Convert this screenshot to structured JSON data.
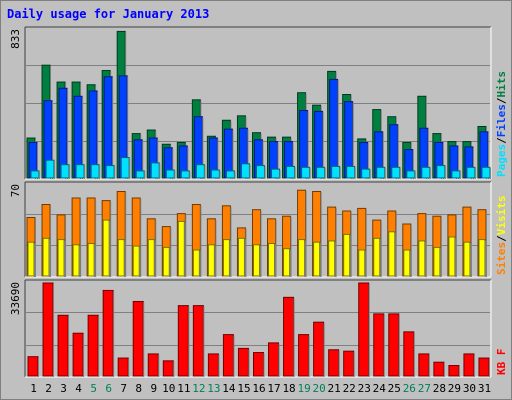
{
  "chart_data": {
    "type": "bar",
    "title": "Daily usage for January 2013",
    "categories": [
      "1",
      "2",
      "3",
      "4",
      "5",
      "6",
      "7",
      "8",
      "9",
      "10",
      "11",
      "12",
      "13",
      "14",
      "15",
      "16",
      "17",
      "18",
      "19",
      "20",
      "21",
      "22",
      "23",
      "24",
      "25",
      "26",
      "27",
      "28",
      "29",
      "30",
      "31"
    ],
    "weekend_days": [
      "5",
      "6",
      "12",
      "13",
      "19",
      "20",
      "26",
      "27"
    ],
    "colors": {
      "hits": "#008040",
      "files": "#0040ff",
      "pages": "#00e0ff",
      "visits": "#ffff00",
      "sites": "#ff8000",
      "kbytes": "#ff0000",
      "weekday_label": "#000000",
      "weekend_label": "#00805c",
      "plot_bg": "#c0c0c0",
      "gridline": "#808080"
    },
    "panels": [
      {
        "id": "hits-files-pages",
        "ymax_label": "833",
        "ymax": 833,
        "series": [
          {
            "name": "Hits",
            "key": "hits",
            "values": [
              225,
              635,
              540,
              540,
              525,
              605,
              825,
              250,
              270,
              190,
              200,
              440,
              235,
              325,
              350,
              255,
              230,
              230,
              480,
              410,
              600,
              470,
              220,
              385,
              345,
              200,
              460,
              250,
              205,
              205,
              290
            ]
          },
          {
            "name": "Files",
            "key": "files",
            "values": [
              200,
              435,
              505,
              460,
              490,
              570,
              575,
              215,
              225,
              170,
              180,
              345,
              225,
              275,
              280,
              215,
              205,
              205,
              380,
              375,
              555,
              430,
              200,
              260,
              300,
              160,
              280,
              200,
              180,
              175,
              260
            ]
          },
          {
            "name": "Pages",
            "key": "pages",
            "values": [
              40,
              100,
              75,
              75,
              75,
              70,
              115,
              40,
              85,
              45,
              40,
              75,
              45,
              40,
              80,
              70,
              50,
              65,
              60,
              60,
              65,
              65,
              50,
              60,
              60,
              40,
              60,
              70,
              40,
              60,
              60
            ]
          }
        ],
        "labels": [
          {
            "text": "Pages",
            "key": "pages"
          },
          {
            "text": "/",
            "key": "sep"
          },
          {
            "text": "Files",
            "key": "files"
          },
          {
            "text": "/",
            "key": "sep"
          },
          {
            "text": "Hits",
            "key": "hits"
          }
        ]
      },
      {
        "id": "visits-sites",
        "ymax_label": "70",
        "ymax": 70,
        "series": [
          {
            "name": "Sites",
            "key": "sites",
            "values": [
              45,
              55,
              47,
              60,
              60,
              58,
              65,
              60,
              44,
              38,
              48,
              55,
              44,
              54,
              37,
              51,
              44,
              46,
              66,
              65,
              53,
              50,
              52,
              43,
              50,
              40,
              48,
              46,
              47,
              53,
              51
            ]
          },
          {
            "name": "Visits",
            "key": "visits",
            "values": [
              26,
              29,
              28,
              24,
              25,
              43,
              28,
              23,
              28,
              22,
              42,
              20,
              24,
              28,
              29,
              24,
              25,
              21,
              28,
              26,
              27,
              32,
              20,
              29,
              34,
              20,
              27,
              22,
              30,
              26,
              28
            ]
          }
        ],
        "labels": [
          {
            "text": "Sites",
            "key": "sites"
          },
          {
            "text": "/",
            "key": "sep"
          },
          {
            "text": "Visits",
            "key": "visits"
          }
        ]
      },
      {
        "id": "kbytes",
        "ymax_label": "33690",
        "ymax": 33690,
        "series": [
          {
            "name": "KBytes",
            "key": "kbytes",
            "values": [
              7000,
              33690,
              22000,
              15500,
              22000,
              31000,
              6500,
              27000,
              8000,
              5500,
              25500,
              25500,
              8000,
              15000,
              10000,
              8500,
              12000,
              28500,
              15000,
              19500,
              9500,
              9000,
              33690,
              22500,
              22500,
              16000,
              8000,
              5000,
              3800,
              8000,
              6500
            ]
          }
        ],
        "labels": [
          {
            "text": "KB",
            "key": "kbytes"
          },
          {
            "text": "F",
            "key": "kbytes"
          }
        ]
      }
    ]
  }
}
